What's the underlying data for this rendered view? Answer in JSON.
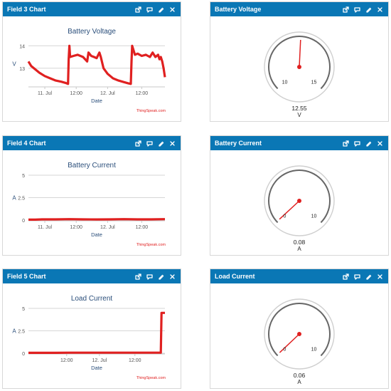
{
  "widgets": [
    {
      "id": "w1",
      "header": "Field 3 Chart",
      "kind": "chart",
      "chart_data": {
        "type": "line",
        "title": "Battery Voltage",
        "xlabel": "Date",
        "ylabel": "V",
        "ylim": [
          12.2,
          14.2
        ],
        "yticks": [
          "13",
          "14"
        ],
        "yticks_v": [
          13,
          14
        ],
        "xticks": [
          "11. Jul",
          "12:00",
          "12. Jul",
          "12:00"
        ],
        "xticks_t": [
          0.12,
          0.35,
          0.58,
          0.83
        ],
        "credit": "ThingSpeak.com",
        "color": "#e02020",
        "series": [
          {
            "x": [
              0.0,
              0.02,
              0.05,
              0.08,
              0.12,
              0.16,
              0.2,
              0.24,
              0.27,
              0.29,
              0.295,
              0.3,
              0.305,
              0.33,
              0.36,
              0.4,
              0.43,
              0.44,
              0.46,
              0.48,
              0.5,
              0.52,
              0.53,
              0.55,
              0.58,
              0.62,
              0.66,
              0.7,
              0.73,
              0.75,
              0.755,
              0.76,
              0.78,
              0.8,
              0.83,
              0.86,
              0.89,
              0.91,
              0.93,
              0.95,
              0.96,
              0.97,
              0.98,
              0.99,
              1.0
            ],
            "y": [
              13.3,
              13.1,
              12.95,
              12.8,
              12.65,
              12.55,
              12.45,
              12.4,
              12.35,
              12.3,
              13.4,
              14.0,
              13.5,
              13.55,
              13.6,
              13.5,
              13.3,
              13.7,
              13.55,
              13.5,
              13.45,
              13.7,
              13.5,
              13.0,
              12.75,
              12.55,
              12.45,
              12.38,
              12.33,
              12.3,
              13.3,
              14.0,
              13.6,
              13.65,
              13.55,
              13.6,
              13.5,
              13.7,
              13.5,
              13.6,
              13.4,
              13.5,
              13.3,
              13.0,
              12.6
            ]
          }
        ]
      }
    },
    {
      "id": "w2",
      "header": "Battery Voltage",
      "kind": "gauge",
      "gauge": {
        "min": 10,
        "max": 15,
        "value": 12.55,
        "min_label": "10",
        "max_label": "15",
        "value_label": "12.55",
        "unit": "V"
      }
    },
    {
      "id": "w3",
      "header": "Field 4 Chart",
      "kind": "chart",
      "chart_data": {
        "type": "line",
        "title": "Battery Current",
        "xlabel": "Date",
        "ylabel": "A",
        "ylim": [
          0,
          5
        ],
        "yticks": [
          "0",
          "2.5",
          "5"
        ],
        "yticks_v": [
          0,
          2.5,
          5
        ],
        "xticks": [
          "11. Jul",
          "12:00",
          "12. Jul",
          "12:00"
        ],
        "xticks_t": [
          0.12,
          0.35,
          0.58,
          0.83
        ],
        "credit": "ThingSpeak.com",
        "color": "#e02020",
        "series": [
          {
            "x": [
              0.0,
              0.05,
              0.1,
              0.2,
              0.3,
              0.4,
              0.5,
              0.6,
              0.7,
              0.8,
              0.9,
              1.0
            ],
            "y": [
              0.05,
              0.05,
              0.08,
              0.08,
              0.1,
              0.08,
              0.07,
              0.08,
              0.1,
              0.08,
              0.08,
              0.1
            ]
          }
        ]
      }
    },
    {
      "id": "w4",
      "header": "Battery Current",
      "kind": "gauge",
      "gauge": {
        "min": 0,
        "max": 10,
        "value": 0.08,
        "min_label": "0",
        "max_label": "10",
        "value_label": "0.08",
        "unit": "A"
      }
    },
    {
      "id": "w5",
      "header": "Field 5 Chart",
      "kind": "chart",
      "chart_data": {
        "type": "line",
        "title": "Load Current",
        "xlabel": "Date",
        "ylabel": "A",
        "ylim": [
          0,
          5
        ],
        "yticks": [
          "0",
          "2.5",
          "5"
        ],
        "yticks_v": [
          0,
          2.5,
          5
        ],
        "xticks": [
          "12:00",
          "12. Jul",
          "12:00"
        ],
        "xticks_t": [
          0.28,
          0.52,
          0.78
        ],
        "credit": "ThingSpeak.com",
        "color": "#e02020",
        "series": [
          {
            "x": [
              0.0,
              0.1,
              0.2,
              0.3,
              0.4,
              0.5,
              0.6,
              0.7,
              0.8,
              0.9,
              0.96,
              0.97,
              0.975,
              1.0
            ],
            "y": [
              0.05,
              0.05,
              0.05,
              0.06,
              0.06,
              0.06,
              0.06,
              0.06,
              0.06,
              0.06,
              0.06,
              0.06,
              4.5,
              4.5
            ]
          }
        ]
      }
    },
    {
      "id": "w6",
      "header": "Load Current",
      "kind": "gauge",
      "gauge": {
        "min": 0,
        "max": 10,
        "value": 0.06,
        "min_label": "0",
        "max_label": "10",
        "value_label": "0.06",
        "unit": "A"
      }
    }
  ]
}
